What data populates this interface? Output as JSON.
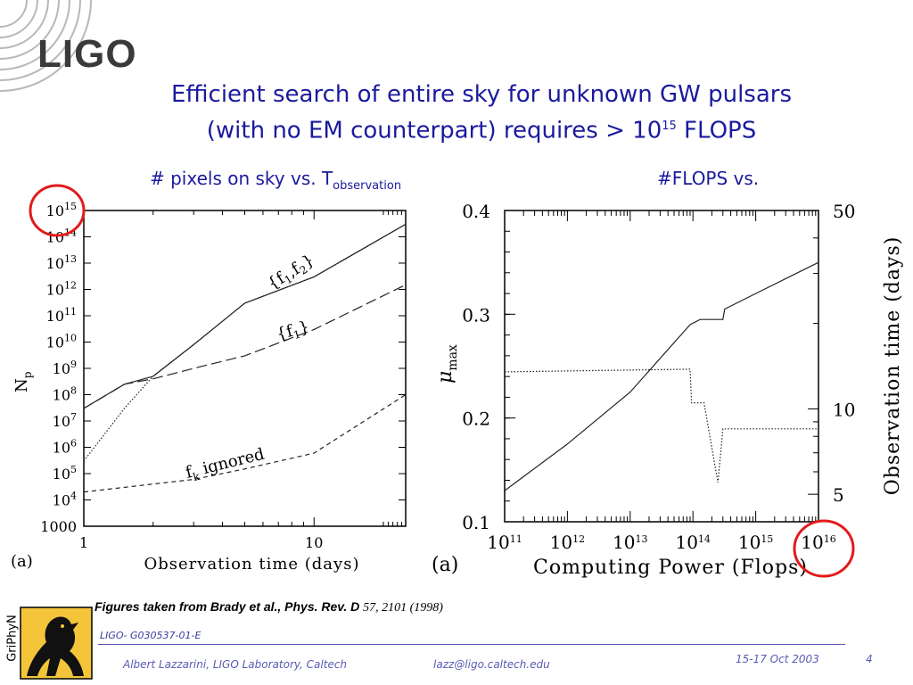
{
  "header": {
    "logo_text": "LIGO",
    "title_line1": "Efficient search of entire sky for unknown GW pulsars",
    "title_line2_pre": "(with no EM counterpart) requires > 10",
    "title_line2_sup": "15",
    "title_line2_post": " FLOPS"
  },
  "left_subtitle": {
    "text": "# pixels on sky vs. T",
    "sub": "observation"
  },
  "right_subtitle": {
    "text": "#FLOPS vs."
  },
  "caption": {
    "text": "Figures taken from Brady et al., Phys. Rev. D ",
    "ref": "57, 2101 (1998)"
  },
  "footer": {
    "doc_id": "LIGO- G030537-01-E",
    "author": "Albert Lazzarini, LIGO Laboratory, Caltech",
    "email": "lazz@ligo.caltech.edu",
    "date": "15-17 Oct 2003",
    "page": "4",
    "griphyn": "GriPhyN"
  },
  "colors": {
    "title": "#1a1a9e",
    "highlight_circle": "#e21b1b",
    "footer_text": "#5a5ab4"
  },
  "chart_data": [
    {
      "type": "line",
      "panel_label": "(a)",
      "xlabel": "Observation time (days)",
      "ylabel": "N_p",
      "x_scale": "log",
      "y_scale": "log",
      "xlim": [
        1,
        25
      ],
      "ylim": [
        1000,
        1000000000000000.0
      ],
      "xticks": [
        1,
        10
      ],
      "xtick_labels": [
        "1",
        "10"
      ],
      "ytick_labels": [
        {
          "base": "1000",
          "exp": ""
        },
        {
          "base": "10",
          "exp": "4"
        },
        {
          "base": "10",
          "exp": "5"
        },
        {
          "base": "10",
          "exp": "6"
        },
        {
          "base": "10",
          "exp": "7"
        },
        {
          "base": "10",
          "exp": "8"
        },
        {
          "base": "10",
          "exp": "9"
        },
        {
          "base": "10",
          "exp": "10"
        },
        {
          "base": "10",
          "exp": "11"
        },
        {
          "base": "10",
          "exp": "12"
        },
        {
          "base": "10",
          "exp": "13"
        },
        {
          "base": "10",
          "exp": "14"
        },
        {
          "base": "10",
          "exp": "15"
        }
      ],
      "series": [
        {
          "label": "{f1,f2}",
          "style": "solid",
          "x": [
            1,
            1.5,
            2,
            3,
            5,
            10,
            25
          ],
          "y": [
            30000000.0,
            250000000.0,
            500000000.0,
            8000000000.0,
            300000000000.0,
            3000000000000.0,
            300000000000000.0
          ]
        },
        {
          "label": "{f1,f2}",
          "style": "dotted",
          "x": [
            1,
            1.5,
            2,
            3,
            5,
            10,
            25
          ],
          "y": [
            300000.0,
            30000000.0,
            500000000.0,
            8000000000.0,
            300000000000.0,
            3000000000000.0,
            300000000000000.0
          ]
        },
        {
          "label": "{f1}",
          "style": "long-dash",
          "x": [
            1,
            1.5,
            2,
            3,
            5,
            10,
            25
          ],
          "y": [
            30000000.0,
            250000000.0,
            400000000.0,
            1000000000.0,
            3000000000.0,
            30000000000.0,
            1500000000000.0
          ]
        },
        {
          "label": "fk ignored",
          "style": "short-dash",
          "x": [
            1,
            2,
            3,
            5,
            10,
            25
          ],
          "y": [
            20000.0,
            40000.0,
            60000.0,
            150000.0,
            600000.0,
            100000000.0
          ]
        }
      ],
      "annotations": [
        {
          "text": "{f",
          "sub1": "1",
          "mid": ",f",
          "sub2": "2",
          "end": "}"
        },
        {
          "text": "{f",
          "sub1": "1",
          "end": "}"
        },
        {
          "text": "f",
          "sub1": "k",
          "end": " ignored"
        }
      ]
    },
    {
      "type": "line",
      "panel_label": "(a)",
      "xlabel": "Computing Power (Flops)",
      "ylabel": "μ_max",
      "y2label": "Observation time (days)",
      "x_scale": "log",
      "xlim": [
        100000000000.0,
        1e+16
      ],
      "ylim": [
        0.1,
        0.4
      ],
      "y2_scale": "log",
      "y2lim": [
        4,
        50
      ],
      "xtick_labels": [
        {
          "base": "10",
          "exp": "11"
        },
        {
          "base": "10",
          "exp": "12"
        },
        {
          "base": "10",
          "exp": "13"
        },
        {
          "base": "10",
          "exp": "14"
        },
        {
          "base": "10",
          "exp": "15"
        },
        {
          "base": "10",
          "exp": "16"
        }
      ],
      "ytick_labels": [
        "0.1",
        "0.2",
        "0.3",
        "0.4"
      ],
      "y2tick_labels": [
        "5",
        "10",
        "50"
      ],
      "series": [
        {
          "axis": "left",
          "style": "solid",
          "x": [
            100000000000.0,
            1000000000000.0,
            10000000000000.0,
            90000000000000.0,
            130000000000000.0,
            300000000000000.0,
            320000000000000.0,
            1000000000000000.0,
            1e+16
          ],
          "y": [
            0.13,
            0.175,
            0.225,
            0.29,
            0.295,
            0.295,
            0.305,
            0.32,
            0.35
          ]
        },
        {
          "axis": "right",
          "style": "dotted",
          "x": [
            100000000000.0,
            1000000000000.0,
            10000000000000.0,
            90000000000000.0,
            95000000000000.0,
            150000000000000.0,
            250000000000000.0,
            300000000000000.0,
            1000000000000000.0,
            1e+16
          ],
          "y": [
            13.5,
            13.6,
            13.7,
            13.8,
            10.5,
            10.5,
            5.5,
            8.5,
            8.5,
            8.5
          ]
        }
      ]
    }
  ]
}
